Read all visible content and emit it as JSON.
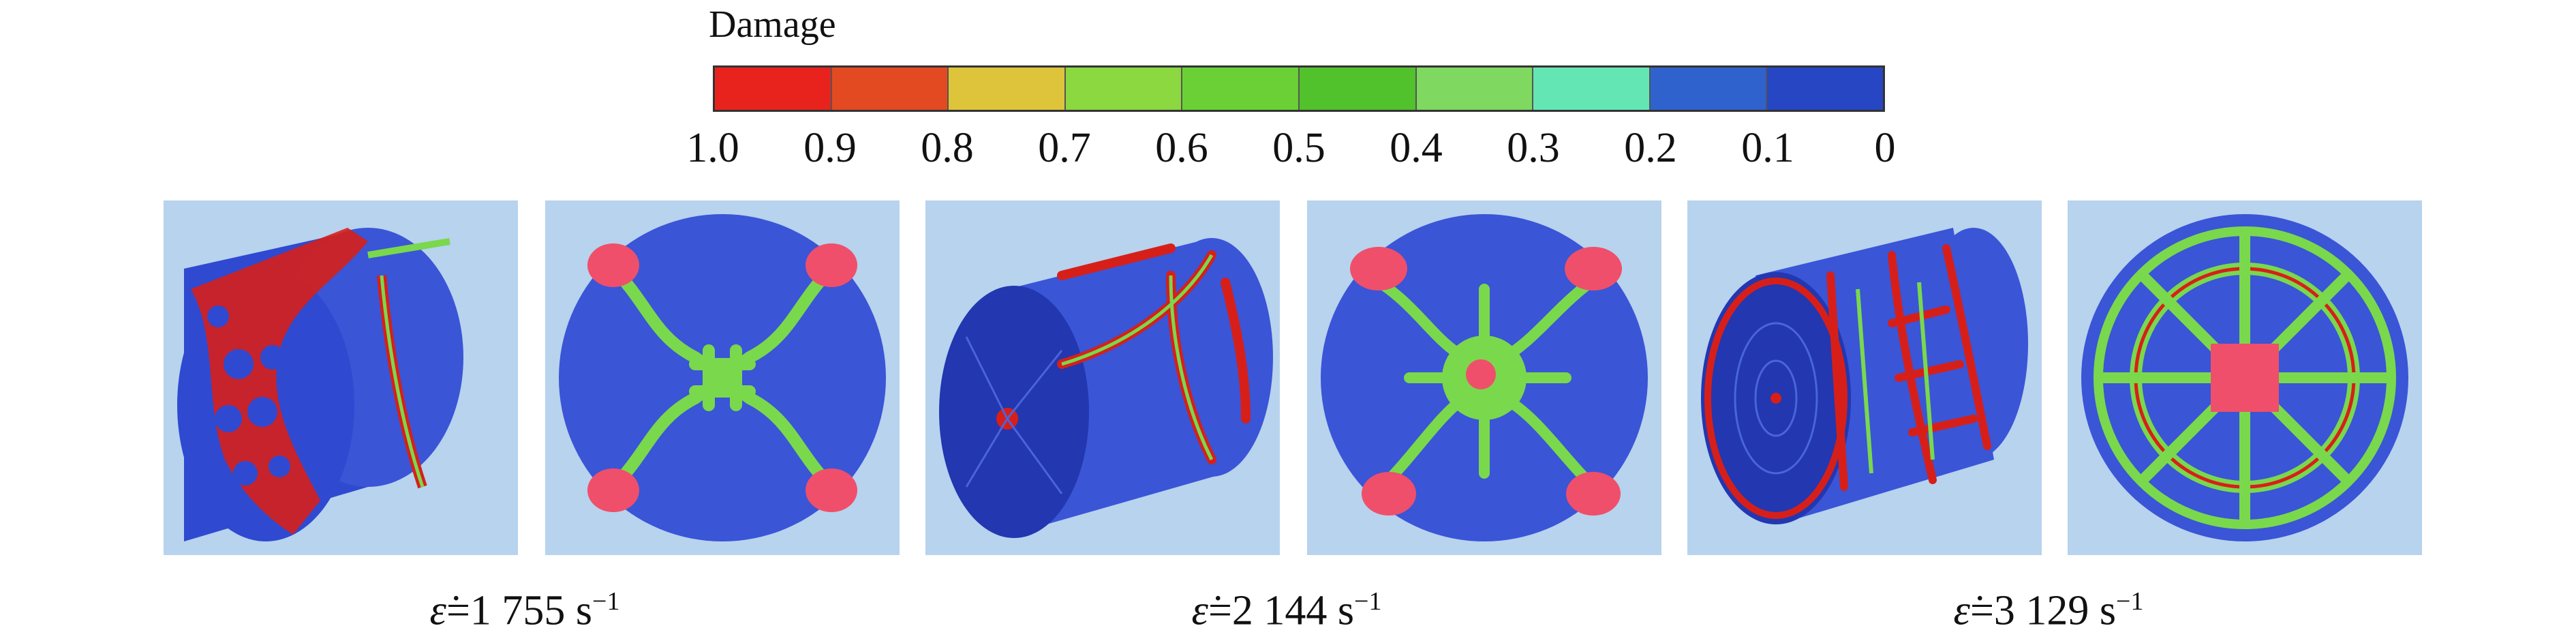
{
  "colorbar": {
    "title": "Damage",
    "colors": [
      "#e8231e",
      "#e44a22",
      "#ddc43a",
      "#8bd840",
      "#6ad036",
      "#52c22c",
      "#7fd860",
      "#64e6b4",
      "#2f62cc",
      "#2646c4"
    ],
    "tick_labels": [
      "1.0",
      "0.9",
      "0.8",
      "0.7",
      "0.6",
      "0.5",
      "0.4",
      "0.3",
      "0.2",
      "0.1",
      "0"
    ]
  },
  "palette": {
    "intact": "#3a55d6",
    "intact_dark": "#2237b0",
    "band": "#7ad84c",
    "core": "#e8231e",
    "patch": "#ef4f6b",
    "background": "#b7d3ee"
  },
  "labels": [
    {
      "symbol": "ε̇",
      "text": "=1 755 s",
      "exponent": "−1"
    },
    {
      "symbol": "ε̇",
      "text": "=2 144 s",
      "exponent": "−1"
    },
    {
      "symbol": "ε̇",
      "text": "=3 129 s",
      "exponent": "−1"
    }
  ]
}
